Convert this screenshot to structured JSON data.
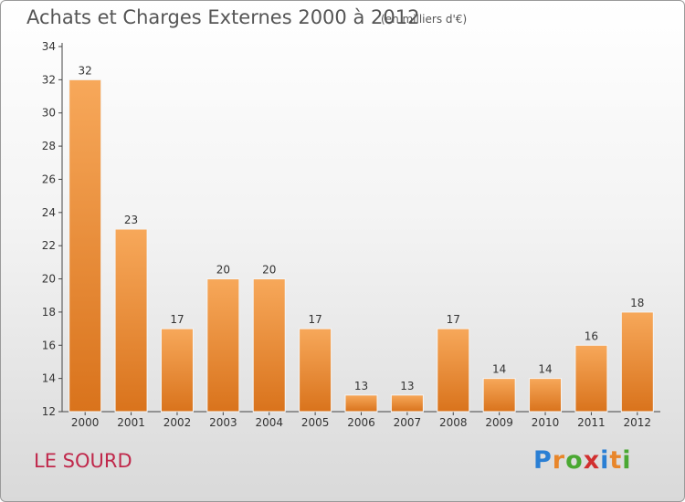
{
  "header": {
    "title": "Achats et Charges Externes 2000 à 2012",
    "unit": "(en milliers d'€)"
  },
  "footer": {
    "commune": "LE SOURD",
    "brand_letters": [
      "P",
      "r",
      "o",
      "x",
      "i",
      "t",
      "i"
    ],
    "brand_colors": [
      "#2a7fd4",
      "#e8862a",
      "#4aa832",
      "#d12f2f",
      "#2a7fd4",
      "#e8862a",
      "#4aa832"
    ]
  },
  "chart_data": {
    "type": "bar",
    "categories": [
      "2000",
      "2001",
      "2002",
      "2003",
      "2004",
      "2005",
      "2006",
      "2007",
      "2008",
      "2009",
      "2010",
      "2011",
      "2012"
    ],
    "values": [
      32,
      23,
      17,
      20,
      20,
      17,
      13,
      13,
      17,
      14,
      14,
      16,
      18
    ],
    "title": "Achats et Charges Externes 2000 à 2012",
    "ylim": [
      12,
      34
    ],
    "yticks": [
      12,
      14,
      16,
      18,
      20,
      22,
      24,
      26,
      28,
      30,
      32,
      34
    ],
    "grid": false,
    "bar_color_top": "#f7a85a",
    "bar_color_bottom": "#d9731c"
  }
}
